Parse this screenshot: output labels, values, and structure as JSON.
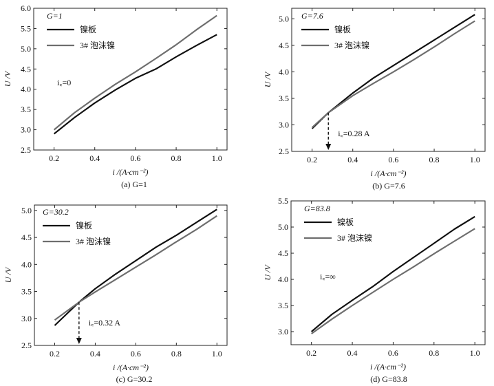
{
  "legend": {
    "nickel_plate": "镍板",
    "nickel_foam": "3# 泡沫镍"
  },
  "colors": {
    "nickel_plate": "#111111",
    "nickel_foam": "#6e6e6e",
    "axis": "#222222"
  },
  "chart_data": [
    {
      "type": "line",
      "panel_label": "(a)",
      "caption": "G=1",
      "param_label": "G=1",
      "annotation": "i꜀=0",
      "xlabel": "i /(A·cm⁻²)",
      "ylabel": "U /V",
      "xlim": [
        0.1,
        1.05
      ],
      "ylim": [
        2.5,
        6.0
      ],
      "xticks": [
        0.2,
        0.4,
        0.6,
        0.8,
        1.0
      ],
      "yticks": [
        2.5,
        3.0,
        3.5,
        4.0,
        4.5,
        5.0,
        5.5,
        6.0
      ],
      "tick_labels_x": [
        "0.2",
        "0.4",
        "0.6",
        "0.8",
        "1.0"
      ],
      "tick_labels_y": [
        "2.5",
        "3.0",
        "3.5",
        "4.0",
        "4.5",
        "5.0",
        "5.5",
        "6.0"
      ],
      "series": [
        {
          "name": "镍板",
          "x": [
            0.2,
            0.3,
            0.4,
            0.5,
            0.6,
            0.7,
            0.8,
            0.9,
            1.0
          ],
          "y": [
            2.9,
            3.3,
            3.66,
            3.98,
            4.27,
            4.5,
            4.8,
            5.08,
            5.35
          ]
        },
        {
          "name": "3# 泡沫镍",
          "x": [
            0.2,
            0.3,
            0.4,
            0.5,
            0.6,
            0.7,
            0.8,
            0.9,
            1.0
          ],
          "y": [
            3.0,
            3.42,
            3.78,
            4.12,
            4.43,
            4.76,
            5.1,
            5.47,
            5.82
          ]
        }
      ]
    },
    {
      "type": "line",
      "panel_label": "(b)",
      "caption": "G=7.6",
      "param_label": "G=7.6",
      "annotation": "i꜀=0.28 A",
      "arrow_x": 0.28,
      "arrow_y": 3.23,
      "xlabel": "i /(A·cm⁻²)",
      "ylabel": "U /V",
      "xlim": [
        0.1,
        1.05
      ],
      "ylim": [
        2.5,
        5.2
      ],
      "xticks": [
        0.2,
        0.4,
        0.6,
        0.8,
        1.0
      ],
      "yticks": [
        2.5,
        3.0,
        3.5,
        4.0,
        4.5,
        5.0
      ],
      "tick_labels_x": [
        "0.2",
        "0.4",
        "0.6",
        "0.8",
        "1.0"
      ],
      "tick_labels_y": [
        "2.5",
        "3.0",
        "3.5",
        "4.0",
        "4.5",
        "5.0"
      ],
      "series": [
        {
          "name": "镍板",
          "x": [
            0.2,
            0.28,
            0.4,
            0.5,
            0.6,
            0.7,
            0.8,
            0.9,
            1.0
          ],
          "y": [
            2.93,
            3.23,
            3.6,
            3.88,
            4.12,
            4.36,
            4.6,
            4.84,
            5.08
          ]
        },
        {
          "name": "3# 泡沫镍",
          "x": [
            0.2,
            0.28,
            0.4,
            0.5,
            0.6,
            0.7,
            0.8,
            0.9,
            1.0
          ],
          "y": [
            2.95,
            3.23,
            3.55,
            3.78,
            4.0,
            4.23,
            4.47,
            4.72,
            4.96
          ]
        }
      ]
    },
    {
      "type": "line",
      "panel_label": "(c)",
      "caption": "G=30.2",
      "param_label": "G=30.2",
      "annotation": "i꜀=0.32 A",
      "arrow_x": 0.32,
      "arrow_y": 3.3,
      "xlabel": "i /(A·cm⁻²)",
      "ylabel": "U /V",
      "xlim": [
        0.1,
        1.05
      ],
      "ylim": [
        2.5,
        5.1
      ],
      "xticks": [
        0.2,
        0.4,
        0.6,
        0.8,
        1.0
      ],
      "yticks": [
        2.5,
        3.0,
        3.5,
        4.0,
        4.5,
        5.0
      ],
      "tick_labels_x": [
        "0.2",
        "0.4",
        "0.6",
        "0.8",
        "1.0"
      ],
      "tick_labels_y": [
        "2.5",
        "3.0",
        "3.5",
        "4.0",
        "4.5",
        "5.0"
      ],
      "series": [
        {
          "name": "镍板",
          "x": [
            0.2,
            0.32,
            0.4,
            0.5,
            0.6,
            0.7,
            0.8,
            0.9,
            1.0
          ],
          "y": [
            2.87,
            3.3,
            3.55,
            3.82,
            4.07,
            4.32,
            4.54,
            4.78,
            5.02
          ]
        },
        {
          "name": "3# 泡沫镍",
          "x": [
            0.2,
            0.32,
            0.4,
            0.5,
            0.6,
            0.7,
            0.8,
            0.9,
            1.0
          ],
          "y": [
            2.97,
            3.3,
            3.49,
            3.72,
            3.95,
            4.18,
            4.42,
            4.65,
            4.9
          ]
        }
      ]
    },
    {
      "type": "line",
      "panel_label": "(d)",
      "caption": "G=83.8",
      "param_label": "G=83.8",
      "annotation": "i꜀=∞",
      "xlabel": "i /(A·cm⁻²)",
      "ylabel": "U /V",
      "xlim": [
        0.1,
        1.05
      ],
      "ylim": [
        2.75,
        5.5
      ],
      "xticks": [
        0.2,
        0.4,
        0.6,
        0.8,
        1.0
      ],
      "yticks": [
        3.0,
        3.5,
        4.0,
        4.5,
        5.0,
        5.5
      ],
      "tick_labels_x": [
        "0.2",
        "0.4",
        "0.6",
        "0.8",
        "1.0"
      ],
      "tick_labels_y": [
        "3.0",
        "3.5",
        "4.0",
        "4.5",
        "5.0",
        "5.5"
      ],
      "series": [
        {
          "name": "镍板",
          "x": [
            0.2,
            0.3,
            0.4,
            0.5,
            0.6,
            0.7,
            0.8,
            0.9,
            1.0
          ],
          "y": [
            3.0,
            3.33,
            3.6,
            3.86,
            4.15,
            4.42,
            4.69,
            4.96,
            5.2
          ]
        },
        {
          "name": "3# 泡沫镍",
          "x": [
            0.2,
            0.3,
            0.4,
            0.5,
            0.6,
            0.7,
            0.8,
            0.9,
            1.0
          ],
          "y": [
            2.96,
            3.24,
            3.5,
            3.75,
            4.0,
            4.24,
            4.49,
            4.73,
            4.97
          ]
        }
      ]
    }
  ]
}
